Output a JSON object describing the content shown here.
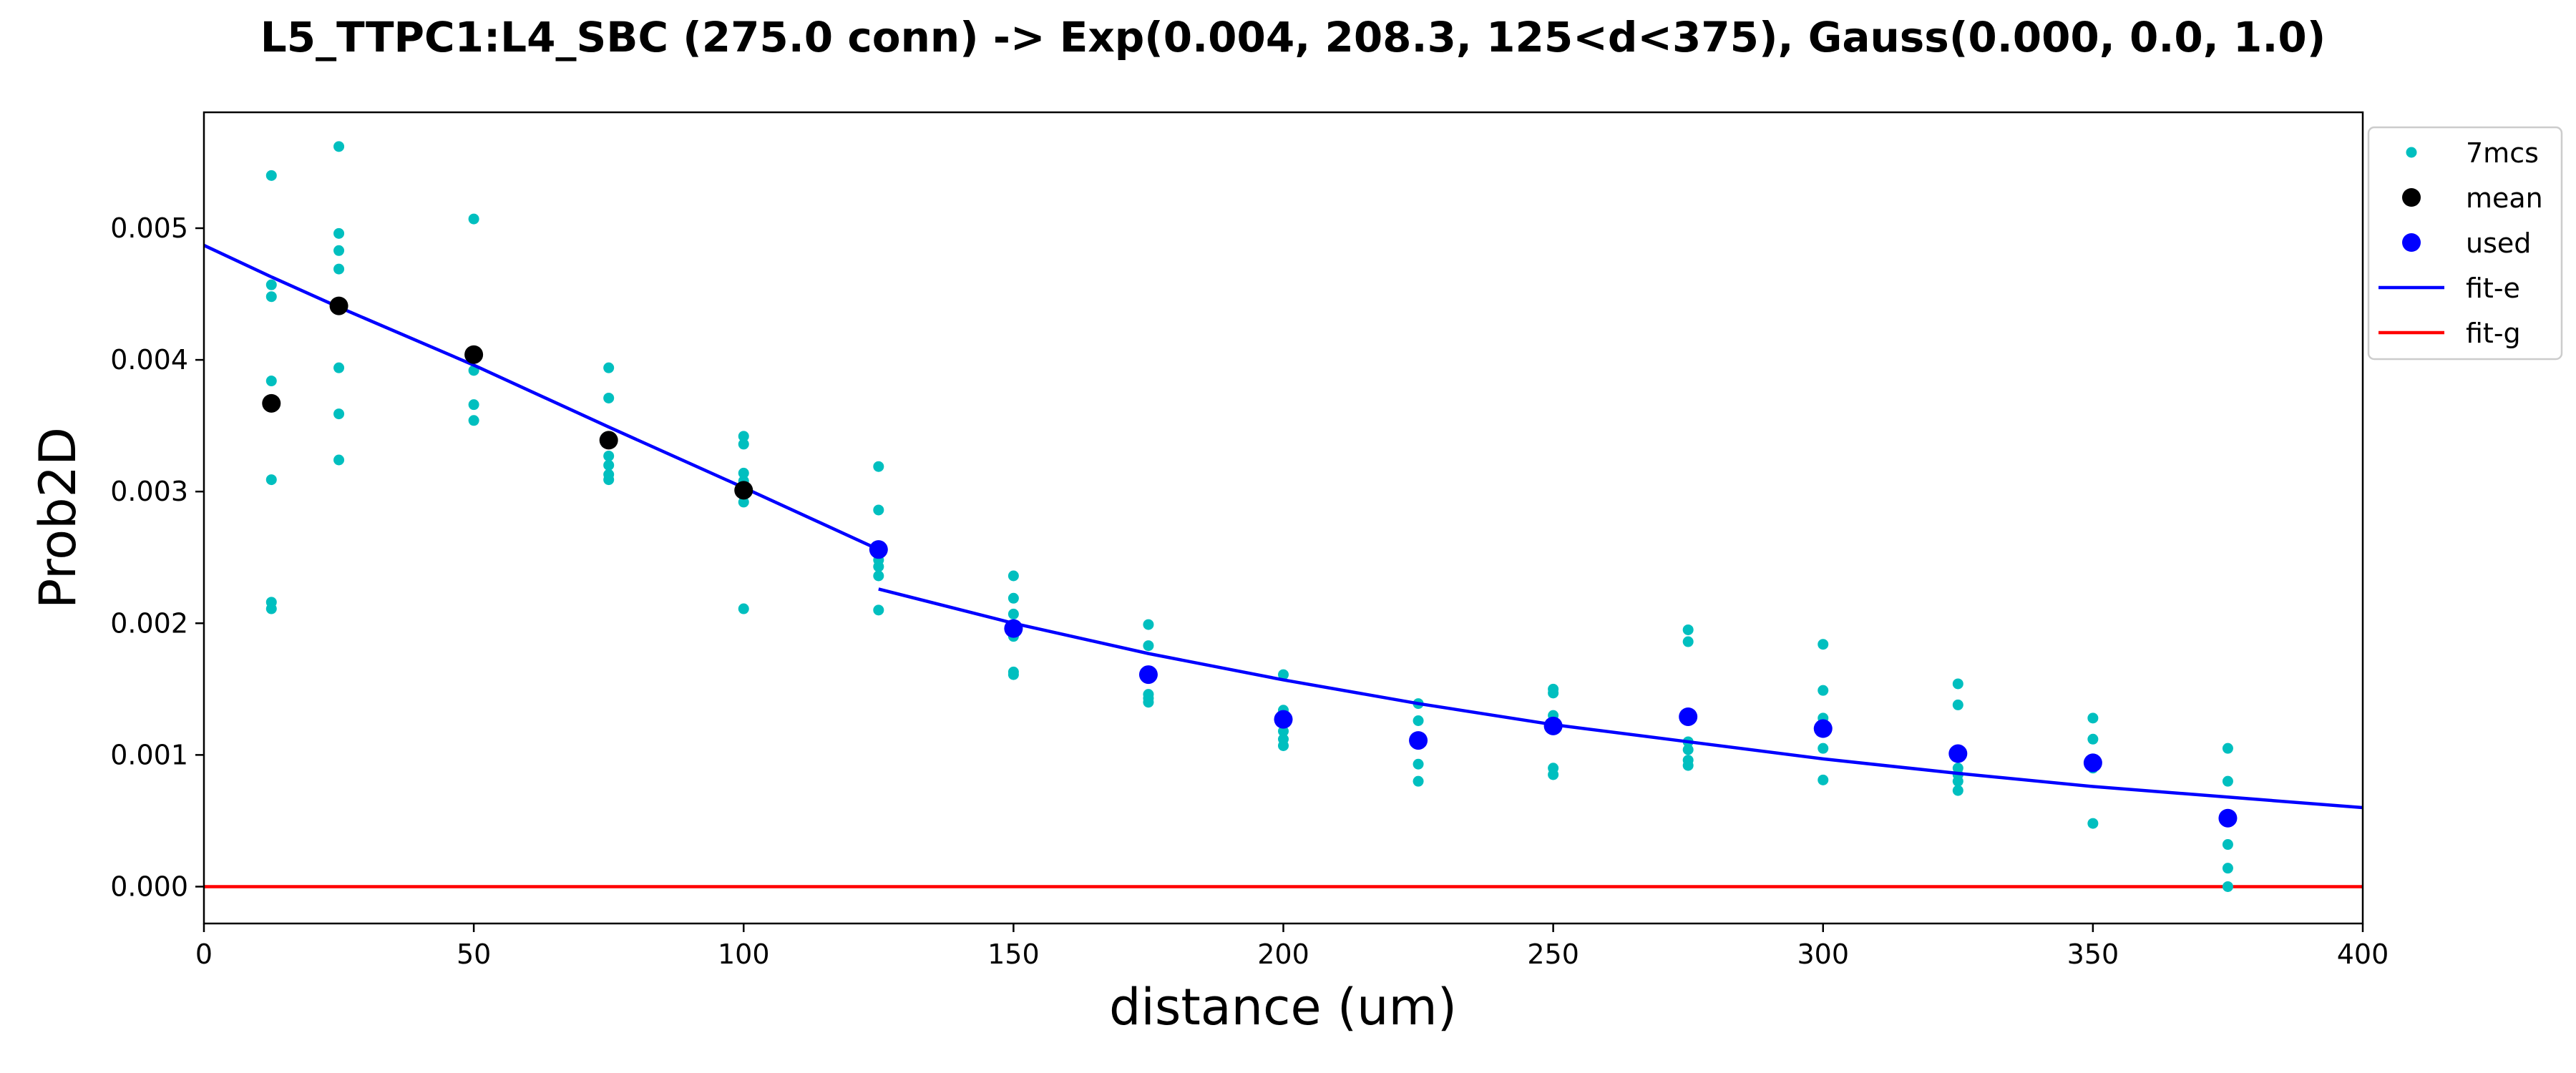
{
  "chart_data": {
    "type": "scatter",
    "title": "L5_TTPC1:L4_SBC (275.0 conn) -> Exp(0.004, 208.3, 125<d<375), Gauss(0.000, 0.0, 1.0)",
    "xlabel": "distance (um)",
    "ylabel": "Prob2D",
    "xlim": [
      0,
      400
    ],
    "ylim": [
      -0.00028,
      0.00588
    ],
    "x_ticks": [
      0,
      50,
      100,
      150,
      200,
      250,
      300,
      350,
      400
    ],
    "y_ticks": [
      0.0,
      0.001,
      0.002,
      0.003,
      0.004,
      0.005
    ],
    "y_tick_decimals": 3,
    "grid": false,
    "legend_position": "outside-top-right",
    "colors": {
      "7mcs": "#00bfbf",
      "mean": "#000000",
      "used": "#0000ff",
      "fit-e": "#0000ff",
      "fit-g": "#ff0000"
    },
    "series": [
      {
        "name": "7mcs",
        "kind": "points",
        "x": [
          12.5,
          12.5,
          12.5,
          12.5,
          12.5,
          12.5,
          12.5,
          25,
          25,
          25,
          25,
          25,
          25,
          25,
          25,
          50,
          50,
          50,
          50,
          50,
          75,
          75,
          75,
          75,
          75,
          75,
          75,
          100,
          100,
          100,
          100,
          100,
          100,
          100,
          125,
          125,
          125,
          125,
          125,
          125,
          125,
          150,
          150,
          150,
          150,
          150,
          150,
          150,
          150,
          175,
          175,
          175,
          175,
          175,
          175,
          175,
          200,
          200,
          200,
          200,
          200,
          200,
          200,
          225,
          225,
          225,
          225,
          225,
          225,
          225,
          250,
          250,
          250,
          250,
          250,
          250,
          250,
          275,
          275,
          275,
          275,
          275,
          275,
          275,
          300,
          300,
          300,
          300,
          300,
          300,
          300,
          325,
          325,
          325,
          325,
          325,
          325,
          325,
          350,
          350,
          350,
          350,
          350,
          350,
          350,
          375,
          375,
          375,
          375,
          375,
          375,
          375
        ],
        "y": [
          0.0054,
          0.00457,
          0.00448,
          0.00384,
          0.00309,
          0.00216,
          0.00211,
          0.00562,
          0.00496,
          0.00483,
          0.00469,
          0.0044,
          0.00394,
          0.00359,
          0.00324,
          0.00507,
          0.00392,
          0.00366,
          0.00354,
          0.00404,
          0.00394,
          0.00371,
          0.00327,
          0.0032,
          0.00313,
          0.00309,
          0.00338,
          0.00342,
          0.00336,
          0.00314,
          0.00308,
          0.00297,
          0.00292,
          0.00211,
          0.00319,
          0.00286,
          0.00248,
          0.00243,
          0.00236,
          0.0021,
          0.00256,
          0.00236,
          0.00219,
          0.00207,
          0.00198,
          0.0019,
          0.00163,
          0.00161,
          0.00196,
          0.00199,
          0.00183,
          0.00146,
          0.00143,
          0.0014,
          0.0016,
          0.0016,
          0.00161,
          0.00134,
          0.00125,
          0.00118,
          0.00112,
          0.00107,
          0.00127,
          0.00139,
          0.00126,
          0.0011,
          0.00093,
          0.0008,
          0.00111,
          0.00111,
          0.0015,
          0.00147,
          0.0013,
          0.00123,
          0.0009,
          0.00085,
          0.00122,
          0.00195,
          0.00186,
          0.0011,
          0.00104,
          0.00096,
          0.00092,
          0.00129,
          0.00184,
          0.00149,
          0.00128,
          0.00117,
          0.00105,
          0.00081,
          0.0012,
          0.00154,
          0.00138,
          0.001,
          0.0009,
          0.00085,
          0.0008,
          0.00073,
          0.00128,
          0.00112,
          0.00097,
          0.00093,
          0.0009,
          0.00048,
          0.00093,
          0.00105,
          0.0008,
          0.00052,
          0.00032,
          0.00014,
          0.0,
          0.00052
        ]
      },
      {
        "name": "mean",
        "kind": "points",
        "x": [
          12.5,
          25,
          50,
          75,
          100
        ],
        "y": [
          0.00367,
          0.00441,
          0.00404,
          0.00339,
          0.00301
        ]
      },
      {
        "name": "used",
        "kind": "points",
        "x": [
          125,
          150,
          175,
          200,
          225,
          250,
          275,
          300,
          325,
          350,
          375
        ],
        "y": [
          0.00256,
          0.00196,
          0.00161,
          0.00127,
          0.00111,
          0.00122,
          0.00129,
          0.0012,
          0.00101,
          0.00094,
          0.00052
        ]
      },
      {
        "name": "fit-e",
        "kind": "line",
        "x": [
          0,
          12.5,
          25,
          50,
          75,
          100,
          125
        ],
        "y": [
          0.00487,
          0.00463,
          0.0044,
          0.00396,
          0.00349,
          0.00303,
          0.00256
        ]
      },
      {
        "name": "fit-e",
        "kind": "line",
        "x": [
          125,
          150,
          175,
          200,
          225,
          250,
          275,
          300,
          325,
          350,
          375,
          400
        ],
        "y": [
          0.00226,
          0.002,
          0.00177,
          0.00157,
          0.00139,
          0.00123,
          0.0011,
          0.00097,
          0.00086,
          0.00076,
          0.00068,
          0.0006
        ]
      },
      {
        "name": "fit-g",
        "kind": "line",
        "x": [
          0,
          400
        ],
        "y": [
          0,
          0
        ]
      }
    ],
    "legend": [
      "7mcs",
      "mean",
      "used",
      "fit-e",
      "fit-g"
    ]
  }
}
